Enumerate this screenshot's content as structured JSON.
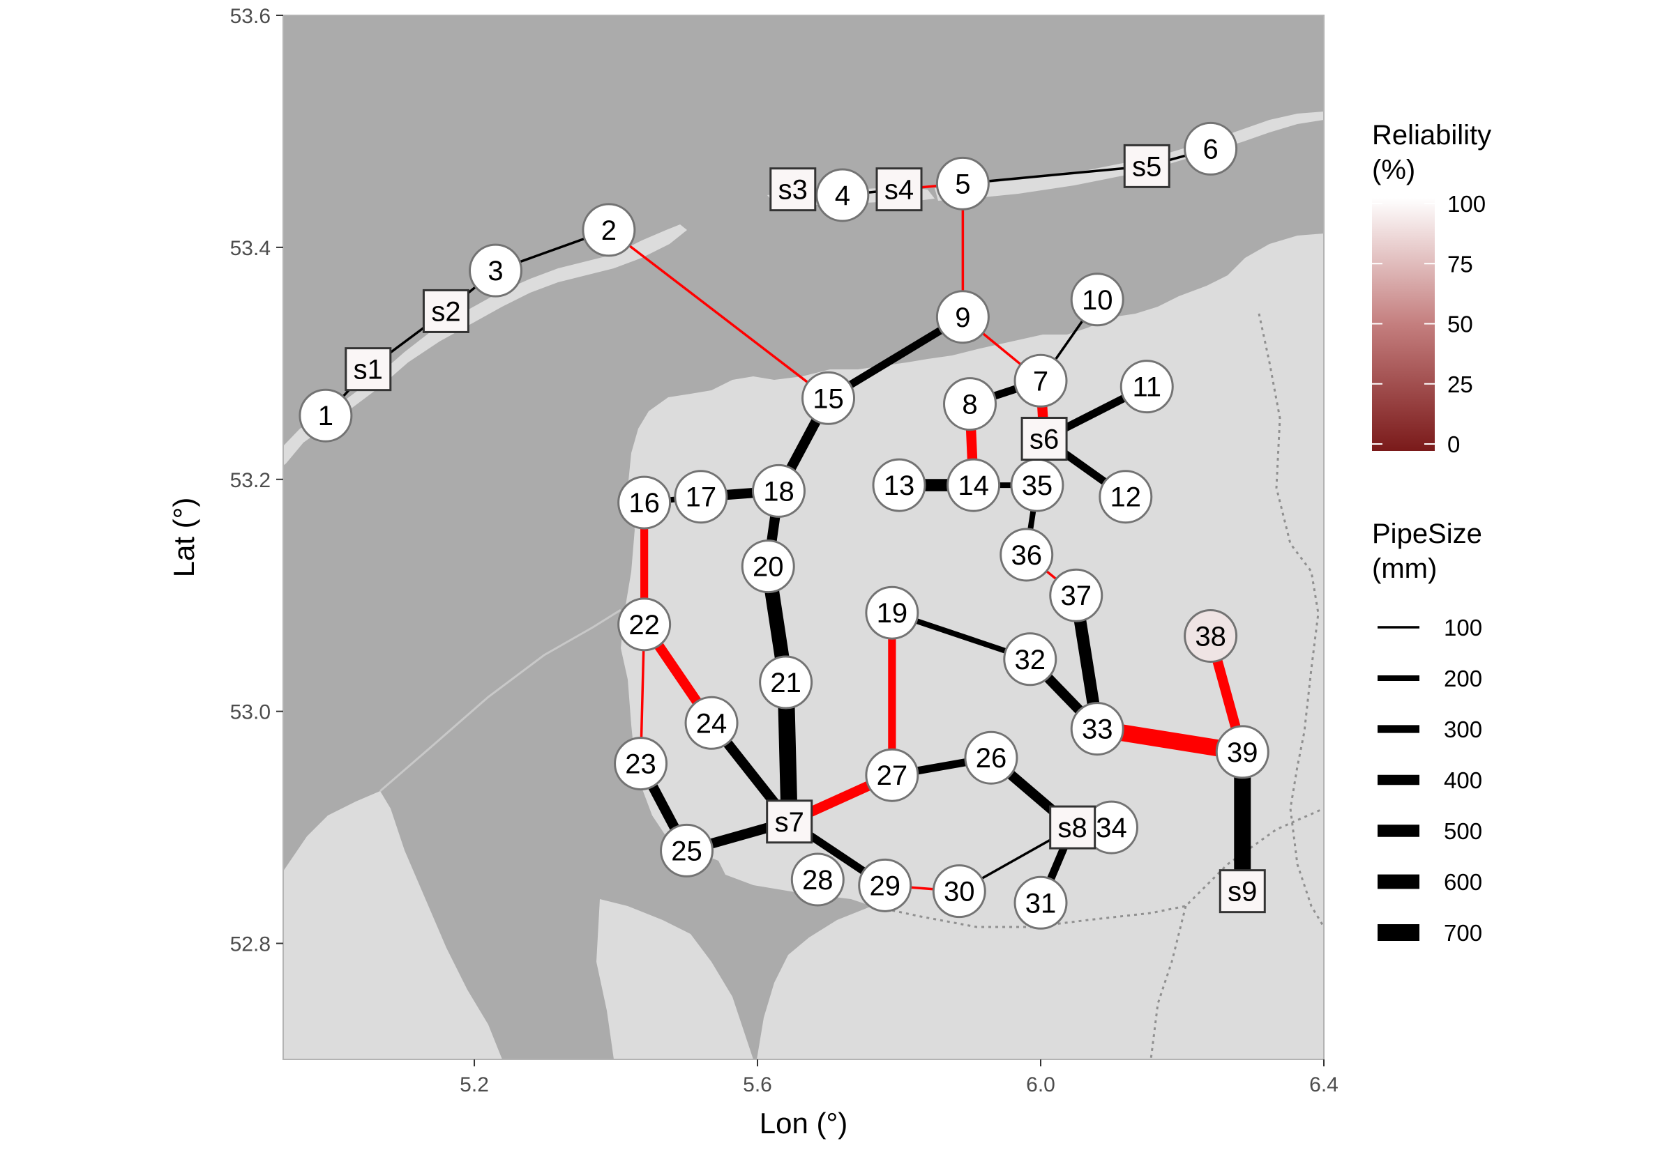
{
  "map": {
    "colors": {
      "water": "#ababab",
      "land": "#dcdcdc",
      "panel_border": "#b3b3b3",
      "node_fill": "#ffffff",
      "node_stroke": "#737373",
      "pipe_black": "#000000",
      "pipe_red": "#ff0000",
      "reliability_low": "#7a1a1a",
      "reliability_high": "#ffffff"
    },
    "xlim": [
      4.93,
      6.4
    ],
    "ylim": [
      52.7,
      53.6
    ],
    "x_ticks": [
      "5.2",
      "5.6",
      "6.0",
      "6.4"
    ],
    "x_tick_values": [
      5.2,
      5.6,
      6.0,
      6.4
    ],
    "y_ticks": [
      "52.8",
      "53.0",
      "53.2",
      "53.4",
      "53.6"
    ],
    "y_tick_values": [
      52.8,
      53.0,
      53.2,
      53.4,
      53.6
    ],
    "xlabel": "Lon (°)",
    "ylabel": "Lat (°)"
  },
  "legend": {
    "reliability": {
      "title_line1": "Reliability",
      "title_line2": "(%)",
      "labels": [
        "100",
        "75",
        "50",
        "25",
        "0"
      ],
      "values": [
        100,
        75,
        50,
        25,
        0
      ]
    },
    "pipesize": {
      "title_line1": "PipeSize",
      "title_line2": "(mm)",
      "labels": [
        "100",
        "200",
        "300",
        "400",
        "500",
        "600",
        "700"
      ],
      "values": [
        100,
        200,
        300,
        400,
        500,
        600,
        700
      ]
    }
  },
  "nodes": [
    {
      "id": "1",
      "type": "circle",
      "lon": 4.99,
      "lat": 53.255,
      "rel": 100
    },
    {
      "id": "2",
      "type": "circle",
      "lon": 5.39,
      "lat": 53.415,
      "rel": 100
    },
    {
      "id": "3",
      "type": "circle",
      "lon": 5.23,
      "lat": 53.38,
      "rel": 100
    },
    {
      "id": "4",
      "type": "circle",
      "lon": 5.72,
      "lat": 53.445,
      "rel": 100
    },
    {
      "id": "5",
      "type": "circle",
      "lon": 5.89,
      "lat": 53.455,
      "rel": 100
    },
    {
      "id": "6",
      "type": "circle",
      "lon": 6.24,
      "lat": 53.485,
      "rel": 100
    },
    {
      "id": "7",
      "type": "circle",
      "lon": 6.0,
      "lat": 53.285,
      "rel": 100
    },
    {
      "id": "8",
      "type": "circle",
      "lon": 5.9,
      "lat": 53.265,
      "rel": 100
    },
    {
      "id": "9",
      "type": "circle",
      "lon": 5.89,
      "lat": 53.34,
      "rel": 100
    },
    {
      "id": "10",
      "type": "circle",
      "lon": 6.08,
      "lat": 53.355,
      "rel": 100
    },
    {
      "id": "11",
      "type": "circle",
      "lon": 6.15,
      "lat": 53.28,
      "rel": 100
    },
    {
      "id": "12",
      "type": "circle",
      "lon": 6.12,
      "lat": 53.185,
      "rel": 100
    },
    {
      "id": "13",
      "type": "circle",
      "lon": 5.8,
      "lat": 53.195,
      "rel": 100
    },
    {
      "id": "14",
      "type": "circle",
      "lon": 5.905,
      "lat": 53.195,
      "rel": 100
    },
    {
      "id": "15",
      "type": "circle",
      "lon": 5.7,
      "lat": 53.27,
      "rel": 100
    },
    {
      "id": "16",
      "type": "circle",
      "lon": 5.44,
      "lat": 53.18,
      "rel": 100
    },
    {
      "id": "17",
      "type": "circle",
      "lon": 5.52,
      "lat": 53.185,
      "rel": 100
    },
    {
      "id": "18",
      "type": "circle",
      "lon": 5.63,
      "lat": 53.19,
      "rel": 100
    },
    {
      "id": "19",
      "type": "circle",
      "lon": 5.79,
      "lat": 53.085,
      "rel": 100
    },
    {
      "id": "20",
      "type": "circle",
      "lon": 5.615,
      "lat": 53.125,
      "rel": 100
    },
    {
      "id": "21",
      "type": "circle",
      "lon": 5.64,
      "lat": 53.025,
      "rel": 100
    },
    {
      "id": "22",
      "type": "circle",
      "lon": 5.44,
      "lat": 53.075,
      "rel": 100
    },
    {
      "id": "23",
      "type": "circle",
      "lon": 5.435,
      "lat": 52.955,
      "rel": 100
    },
    {
      "id": "24",
      "type": "circle",
      "lon": 5.535,
      "lat": 52.99,
      "rel": 100
    },
    {
      "id": "25",
      "type": "circle",
      "lon": 5.5,
      "lat": 52.88,
      "rel": 100
    },
    {
      "id": "26",
      "type": "circle",
      "lon": 5.93,
      "lat": 52.96,
      "rel": 100
    },
    {
      "id": "27",
      "type": "circle",
      "lon": 5.79,
      "lat": 52.945,
      "rel": 100
    },
    {
      "id": "28",
      "type": "circle",
      "lon": 5.685,
      "lat": 52.855,
      "rel": 100
    },
    {
      "id": "29",
      "type": "circle",
      "lon": 5.78,
      "lat": 52.85,
      "rel": 100
    },
    {
      "id": "30",
      "type": "circle",
      "lon": 5.885,
      "lat": 52.845,
      "rel": 100
    },
    {
      "id": "31",
      "type": "circle",
      "lon": 6.0,
      "lat": 52.835,
      "rel": 100
    },
    {
      "id": "32",
      "type": "circle",
      "lon": 5.985,
      "lat": 53.045,
      "rel": 100
    },
    {
      "id": "33",
      "type": "circle",
      "lon": 6.08,
      "lat": 52.985,
      "rel": 100
    },
    {
      "id": "34",
      "type": "circle",
      "lon": 6.1,
      "lat": 52.9,
      "rel": 100
    },
    {
      "id": "35",
      "type": "circle",
      "lon": 5.995,
      "lat": 53.195,
      "rel": 100
    },
    {
      "id": "36",
      "type": "circle",
      "lon": 5.98,
      "lat": 53.135,
      "rel": 100
    },
    {
      "id": "37",
      "type": "circle",
      "lon": 6.05,
      "lat": 53.1,
      "rel": 100
    },
    {
      "id": "38",
      "type": "circle",
      "lon": 6.24,
      "lat": 53.065,
      "rel": 88
    },
    {
      "id": "39",
      "type": "circle",
      "lon": 6.285,
      "lat": 52.965,
      "rel": 100
    },
    {
      "id": "s1",
      "type": "square",
      "lon": 5.05,
      "lat": 53.295,
      "rel": 96
    },
    {
      "id": "s2",
      "type": "square",
      "lon": 5.16,
      "lat": 53.345,
      "rel": 96
    },
    {
      "id": "s3",
      "type": "square",
      "lon": 5.65,
      "lat": 53.45,
      "rel": 96
    },
    {
      "id": "s4",
      "type": "square",
      "lon": 5.8,
      "lat": 53.45,
      "rel": 96
    },
    {
      "id": "s5",
      "type": "square",
      "lon": 6.15,
      "lat": 53.47,
      "rel": 96
    },
    {
      "id": "s6",
      "type": "square",
      "lon": 6.005,
      "lat": 53.235,
      "rel": 96
    },
    {
      "id": "s7",
      "type": "square",
      "lon": 5.645,
      "lat": 52.905,
      "rel": 96
    },
    {
      "id": "s8",
      "type": "square",
      "lon": 6.045,
      "lat": 52.9,
      "rel": 96
    },
    {
      "id": "s9",
      "type": "square",
      "lon": 6.285,
      "lat": 52.845,
      "rel": 96
    }
  ],
  "pipes": [
    {
      "from": "1",
      "to": "s1",
      "size": 100,
      "color": "black"
    },
    {
      "from": "s1",
      "to": "s2",
      "size": 100,
      "color": "black"
    },
    {
      "from": "s2",
      "to": "3",
      "size": 100,
      "color": "black"
    },
    {
      "from": "3",
      "to": "2",
      "size": 100,
      "color": "black"
    },
    {
      "from": "2",
      "to": "15",
      "size": 100,
      "color": "red"
    },
    {
      "from": "s3",
      "to": "4",
      "size": 100,
      "color": "black"
    },
    {
      "from": "4",
      "to": "s4",
      "size": 100,
      "color": "black"
    },
    {
      "from": "s4",
      "to": "5",
      "size": 100,
      "color": "red"
    },
    {
      "from": "5",
      "to": "s5",
      "size": 100,
      "color": "black"
    },
    {
      "from": "s5",
      "to": "6",
      "size": 100,
      "color": "black"
    },
    {
      "from": "5",
      "to": "9",
      "size": 100,
      "color": "red"
    },
    {
      "from": "9",
      "to": "15",
      "size": 300,
      "color": "black"
    },
    {
      "from": "9",
      "to": "7",
      "size": 100,
      "color": "red"
    },
    {
      "from": "10",
      "to": "7",
      "size": 100,
      "color": "black"
    },
    {
      "from": "8",
      "to": "7",
      "size": 300,
      "color": "black"
    },
    {
      "from": "7",
      "to": "s6",
      "size": 400,
      "color": "red"
    },
    {
      "from": "s6",
      "to": "11",
      "size": 300,
      "color": "black"
    },
    {
      "from": "s6",
      "to": "12",
      "size": 300,
      "color": "black"
    },
    {
      "from": "8",
      "to": "14",
      "size": 400,
      "color": "red"
    },
    {
      "from": "13",
      "to": "14",
      "size": 500,
      "color": "black"
    },
    {
      "from": "14",
      "to": "35",
      "size": 200,
      "color": "black"
    },
    {
      "from": "s6",
      "to": "35",
      "size": 200,
      "color": "black"
    },
    {
      "from": "35",
      "to": "36",
      "size": 200,
      "color": "black"
    },
    {
      "from": "36",
      "to": "37",
      "size": 100,
      "color": "red"
    },
    {
      "from": "37",
      "to": "33",
      "size": 500,
      "color": "black"
    },
    {
      "from": "15",
      "to": "18",
      "size": 400,
      "color": "black"
    },
    {
      "from": "16",
      "to": "17",
      "size": 200,
      "color": "black"
    },
    {
      "from": "17",
      "to": "18",
      "size": 400,
      "color": "black"
    },
    {
      "from": "18",
      "to": "20",
      "size": 400,
      "color": "black"
    },
    {
      "from": "20",
      "to": "21",
      "size": 600,
      "color": "black"
    },
    {
      "from": "21",
      "to": "s7",
      "size": 700,
      "color": "black"
    },
    {
      "from": "16",
      "to": "22",
      "size": 300,
      "color": "red"
    },
    {
      "from": "22",
      "to": "23",
      "size": 100,
      "color": "red"
    },
    {
      "from": "22",
      "to": "24",
      "size": 400,
      "color": "red"
    },
    {
      "from": "24",
      "to": "s7",
      "size": 400,
      "color": "black"
    },
    {
      "from": "23",
      "to": "25",
      "size": 400,
      "color": "black"
    },
    {
      "from": "25",
      "to": "s7",
      "size": 400,
      "color": "black"
    },
    {
      "from": "s7",
      "to": "27",
      "size": 400,
      "color": "red"
    },
    {
      "from": "s7",
      "to": "29",
      "size": 300,
      "color": "black"
    },
    {
      "from": "29",
      "to": "30",
      "size": 100,
      "color": "red"
    },
    {
      "from": "30",
      "to": "s8",
      "size": 100,
      "color": "black"
    },
    {
      "from": "27",
      "to": "19",
      "size": 300,
      "color": "red"
    },
    {
      "from": "27",
      "to": "26",
      "size": 300,
      "color": "black"
    },
    {
      "from": "26",
      "to": "s8",
      "size": 400,
      "color": "black"
    },
    {
      "from": "s8",
      "to": "34",
      "size": 200,
      "color": "black"
    },
    {
      "from": "s8",
      "to": "31",
      "size": 300,
      "color": "black"
    },
    {
      "from": "19",
      "to": "32",
      "size": 200,
      "color": "black"
    },
    {
      "from": "32",
      "to": "33",
      "size": 400,
      "color": "black"
    },
    {
      "from": "33",
      "to": "39",
      "size": 700,
      "color": "red"
    },
    {
      "from": "38",
      "to": "39",
      "size": 400,
      "color": "red"
    },
    {
      "from": "39",
      "to": "s9",
      "size": 700,
      "color": "black"
    }
  ]
}
